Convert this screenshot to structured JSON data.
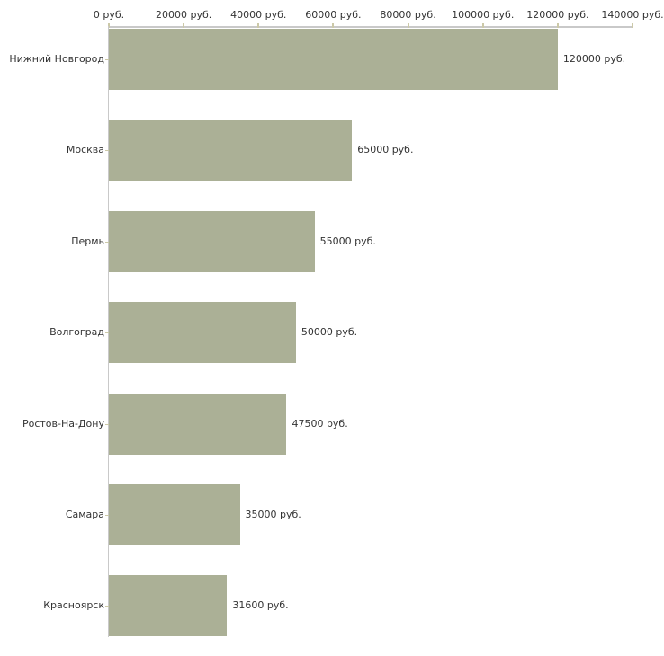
{
  "chart_data": {
    "type": "bar",
    "orientation": "horizontal",
    "title": "",
    "xlabel": "",
    "ylabel": "",
    "grid": false,
    "legend": false,
    "categories": [
      "Нижний Новгород",
      "Москва",
      "Пермь",
      "Волгоград",
      "Ростов-На-Дону",
      "Самара",
      "Красноярск"
    ],
    "values": [
      120000,
      65000,
      55000,
      50000,
      47500,
      35000,
      31600
    ],
    "bar_labels": [
      "120000 руб.",
      "65000 руб.",
      "55000 руб.",
      "50000 руб.",
      "47500 руб.",
      "35000 руб.",
      "31600 руб."
    ],
    "x_axis": {
      "position": "top",
      "min": 0,
      "max": 140000,
      "tick_step": 20000,
      "tick_labels": [
        "0 руб.",
        "20000 руб.",
        "40000 руб.",
        "60000 руб.",
        "80000 руб.",
        "100000 руб.",
        "120000 руб.",
        "140000 руб."
      ]
    },
    "colors": {
      "bar_fill": "#abb096",
      "axis_line": "#c9c9c9",
      "tick_mark": "#ccc9a8",
      "text": "#333333",
      "background": "#ffffff"
    }
  }
}
